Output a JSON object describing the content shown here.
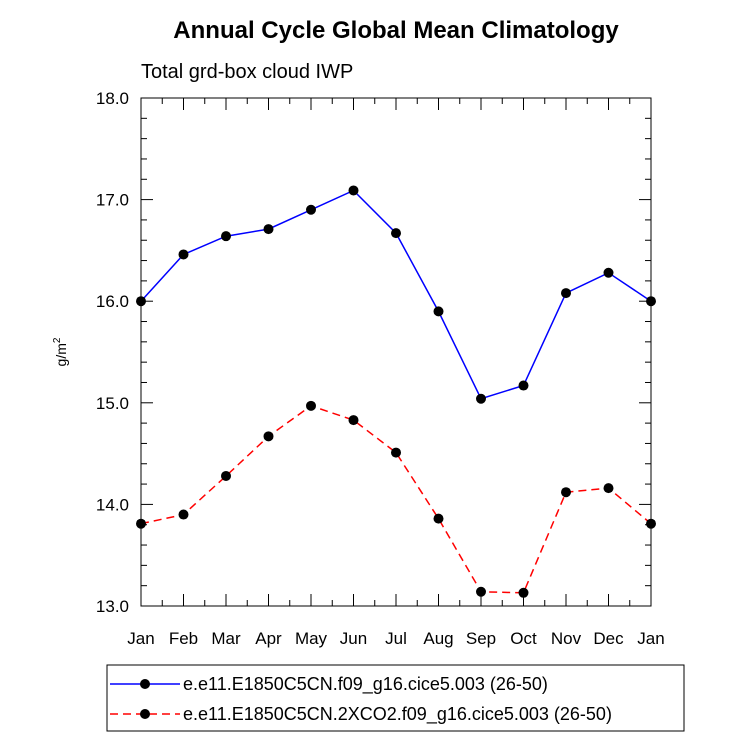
{
  "chart_data": {
    "type": "line",
    "title": "Annual Cycle Global Mean Climatology",
    "subtitle": "Total grd-box cloud IWP",
    "ylabel": "g/m",
    "ylabel_sup": "2",
    "xlabel": "",
    "categories": [
      "Jan",
      "Feb",
      "Mar",
      "Apr",
      "May",
      "Jun",
      "Jul",
      "Aug",
      "Sep",
      "Oct",
      "Nov",
      "Dec",
      "Jan"
    ],
    "ylim": [
      13.0,
      18.0
    ],
    "yticks": [
      "13.0",
      "14.0",
      "15.0",
      "16.0",
      "17.0",
      "18.0"
    ],
    "grid": false,
    "legend_position": "bottom",
    "series": [
      {
        "name": "e.e11.E1850C5CN.f09_g16.cice5.003 (26-50)",
        "color": "#0000ff",
        "style": "solid",
        "values": [
          16.0,
          16.46,
          16.64,
          16.71,
          16.9,
          17.09,
          16.67,
          15.9,
          15.04,
          15.17,
          16.08,
          16.28,
          16.0
        ]
      },
      {
        "name": "e.e11.E1850C5CN.2XCO2.f09_g16.cice5.003 (26-50)",
        "color": "#ff0000",
        "style": "dashed",
        "values": [
          13.81,
          13.9,
          14.28,
          14.67,
          14.97,
          14.83,
          14.51,
          13.86,
          13.14,
          13.13,
          14.12,
          14.16,
          13.81
        ]
      }
    ]
  }
}
